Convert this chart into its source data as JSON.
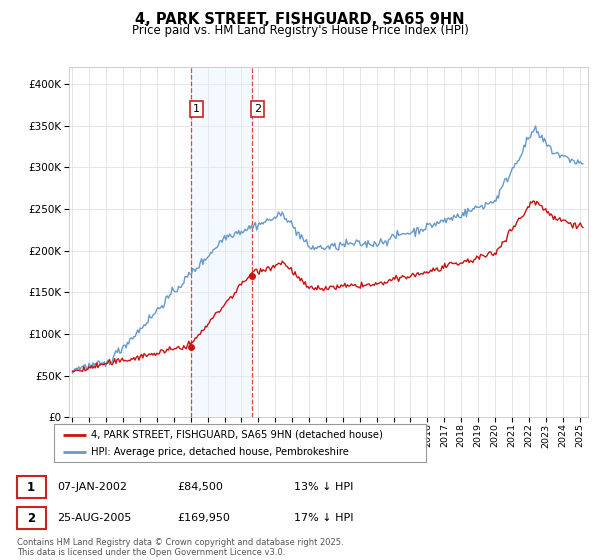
{
  "title": "4, PARK STREET, FISHGUARD, SA65 9HN",
  "subtitle": "Price paid vs. HM Land Registry's House Price Index (HPI)",
  "legend_line1": "4, PARK STREET, FISHGUARD, SA65 9HN (detached house)",
  "legend_line2": "HPI: Average price, detached house, Pembrokeshire",
  "annotation1_label": "1",
  "annotation1_date": "07-JAN-2002",
  "annotation1_price": "£84,500",
  "annotation1_hpi": "13% ↓ HPI",
  "annotation2_label": "2",
  "annotation2_date": "25-AUG-2005",
  "annotation2_price": "£169,950",
  "annotation2_hpi": "17% ↓ HPI",
  "footer": "Contains HM Land Registry data © Crown copyright and database right 2025.\nThis data is licensed under the Open Government Licence v3.0.",
  "sale1_year": 2002.03,
  "sale1_price": 84500,
  "sale2_year": 2005.65,
  "sale2_price": 169950,
  "red_color": "#cc1111",
  "blue_color": "#6699cc",
  "shade_color": "#ddeeff",
  "ylim_min": 0,
  "ylim_max": 420000,
  "xlim_min": 1994.8,
  "xlim_max": 2025.5,
  "background_color": "#ffffff",
  "grid_color": "#dddddd"
}
